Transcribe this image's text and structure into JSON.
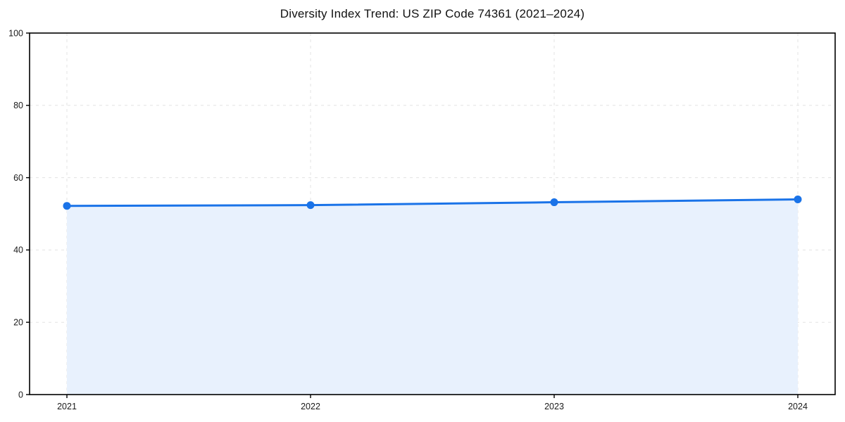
{
  "chart_data": {
    "type": "line",
    "title": "Diversity Index Trend: US ZIP Code 74361 (2021–2024)",
    "x": [
      "2021",
      "2022",
      "2023",
      "2024"
    ],
    "series": [
      {
        "name": "Diversity Index",
        "values": [
          52.2,
          52.4,
          53.2,
          54.0
        ]
      }
    ],
    "xlabel": "",
    "ylabel": "",
    "ylim": [
      0,
      100
    ],
    "yticks": [
      0,
      20,
      40,
      60,
      80,
      100
    ],
    "grid": true,
    "grid_style": "dashed",
    "legend": false,
    "marker": "circle",
    "area_fill": true,
    "colors": {
      "line": "#1a73e8",
      "marker": "#1a73e8",
      "area": "#e8f1fd",
      "grid": "#e3e3e3",
      "axis": "#000000",
      "tick_label": "#1a1a1a",
      "background": "#ffffff"
    }
  }
}
